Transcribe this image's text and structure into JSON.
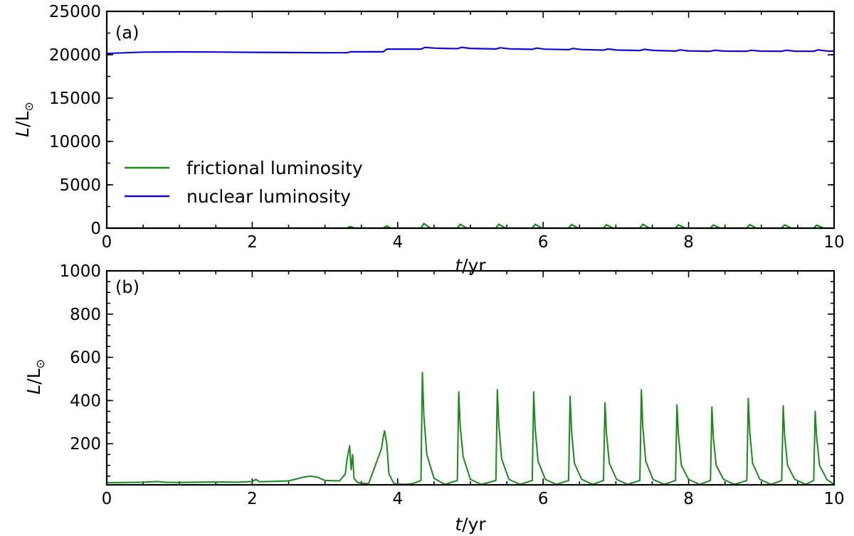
{
  "chart_data": [
    {
      "panel": "(a)",
      "type": "line",
      "xlabel_italic": "t",
      "xlabel_unit": "/yr",
      "ylabel_italic": "L",
      "ylabel_unit": "/L",
      "ylabel_sub": "⊙",
      "xlim": [
        0,
        10
      ],
      "ylim": [
        0,
        25000
      ],
      "xticks": [
        0,
        2,
        4,
        6,
        8,
        10
      ],
      "yticks": [
        0,
        5000,
        10000,
        15000,
        20000,
        25000
      ],
      "grid": false,
      "legend_position": "lower-left",
      "series": [
        {
          "name": "frictional luminosity",
          "color": "#1a8a1a",
          "x": [
            0,
            3.3,
            3.35,
            3.4,
            3.8,
            3.85,
            3.9,
            4.32,
            4.36,
            4.45,
            4.82,
            4.86,
            4.95,
            5.35,
            5.39,
            5.48,
            5.85,
            5.89,
            5.98,
            6.35,
            6.39,
            6.48,
            6.83,
            6.87,
            6.96,
            7.33,
            7.37,
            7.46,
            7.82,
            7.86,
            7.95,
            8.3,
            8.34,
            8.43,
            8.8,
            8.84,
            8.93,
            9.28,
            9.32,
            9.41,
            9.72,
            9.76,
            9.85,
            10
          ],
          "y": [
            20,
            20,
            190,
            20,
            20,
            260,
            20,
            20,
            530,
            20,
            20,
            440,
            20,
            20,
            450,
            20,
            20,
            440,
            20,
            20,
            420,
            20,
            20,
            390,
            20,
            20,
            450,
            20,
            20,
            380,
            20,
            20,
            370,
            20,
            20,
            410,
            20,
            20,
            375,
            20,
            20,
            350,
            20,
            20
          ]
        },
        {
          "name": "nuclear luminosity",
          "color": "#0b0bdc",
          "x": [
            0,
            0.5,
            1.0,
            1.5,
            2.0,
            2.5,
            3.0,
            3.3,
            3.35,
            3.8,
            3.85,
            4.32,
            4.38,
            4.5,
            4.82,
            4.88,
            5.0,
            5.35,
            5.41,
            5.53,
            5.85,
            5.91,
            6.03,
            6.35,
            6.41,
            6.53,
            6.83,
            6.89,
            7.01,
            7.33,
            7.39,
            7.51,
            7.82,
            7.88,
            8.0,
            8.3,
            8.36,
            8.48,
            8.8,
            8.86,
            8.98,
            9.28,
            9.34,
            9.46,
            9.72,
            9.78,
            9.9,
            10
          ],
          "y": [
            20150,
            20300,
            20330,
            20310,
            20280,
            20250,
            20230,
            20230,
            20340,
            20340,
            20650,
            20650,
            20850,
            20760,
            20700,
            20850,
            20730,
            20660,
            20800,
            20680,
            20620,
            20760,
            20640,
            20580,
            20720,
            20600,
            20530,
            20660,
            20540,
            20480,
            20620,
            20500,
            20420,
            20560,
            20440,
            20400,
            20520,
            20420,
            20400,
            20520,
            20420,
            20400,
            20520,
            20410,
            20400,
            20560,
            20430,
            20420
          ]
        }
      ]
    },
    {
      "panel": "(b)",
      "type": "line",
      "xlabel_italic": "t",
      "xlabel_unit": "/yr",
      "ylabel_italic": "L",
      "ylabel_unit": "/L",
      "ylabel_sub": "⊙",
      "xlim": [
        0,
        10
      ],
      "ylim": [
        10,
        1000
      ],
      "xticks": [
        0,
        2,
        4,
        6,
        8,
        10
      ],
      "yticks": [
        200,
        400,
        600,
        800,
        1000
      ],
      "grid": false,
      "series": [
        {
          "color": "#1a8a1a",
          "x": [
            0,
            0.5,
            0.7,
            0.8,
            1.0,
            1.5,
            1.8,
            2.0,
            2.05,
            2.1,
            2.3,
            2.5,
            2.7,
            2.8,
            2.9,
            3.0,
            3.2,
            3.28,
            3.3,
            3.31,
            3.34,
            3.36,
            3.38,
            3.4,
            3.45,
            3.6,
            3.78,
            3.8,
            3.82,
            3.85,
            3.88,
            3.95,
            4.1,
            4.2,
            4.32,
            4.34,
            4.36,
            4.4,
            4.5,
            4.65,
            4.82,
            4.84,
            4.86,
            4.9,
            5.0,
            5.15,
            5.35,
            5.37,
            5.39,
            5.43,
            5.53,
            5.68,
            5.85,
            5.87,
            5.89,
            5.93,
            6.03,
            6.18,
            6.35,
            6.37,
            6.39,
            6.43,
            6.53,
            6.68,
            6.83,
            6.85,
            6.87,
            6.91,
            7.01,
            7.16,
            7.33,
            7.35,
            7.37,
            7.41,
            7.51,
            7.66,
            7.82,
            7.84,
            7.86,
            7.9,
            8.0,
            8.15,
            8.3,
            8.32,
            8.34,
            8.38,
            8.48,
            8.63,
            8.8,
            8.82,
            8.84,
            8.88,
            8.98,
            9.13,
            9.28,
            9.3,
            9.32,
            9.36,
            9.46,
            9.61,
            9.72,
            9.74,
            9.76,
            9.8,
            9.9,
            10
          ],
          "y": [
            20,
            22,
            25,
            22,
            21,
            23,
            22,
            25,
            35,
            24,
            26,
            28,
            45,
            50,
            45,
            30,
            28,
            60,
            120,
            140,
            190,
            80,
            150,
            40,
            20,
            15,
            180,
            230,
            260,
            200,
            60,
            15,
            12,
            15,
            30,
            530,
            330,
            150,
            40,
            12,
            30,
            440,
            280,
            140,
            35,
            12,
            30,
            450,
            290,
            130,
            35,
            12,
            30,
            440,
            270,
            120,
            35,
            12,
            30,
            420,
            260,
            110,
            35,
            12,
            30,
            390,
            250,
            110,
            35,
            12,
            30,
            450,
            280,
            120,
            35,
            12,
            30,
            380,
            240,
            100,
            35,
            12,
            30,
            370,
            230,
            100,
            35,
            12,
            30,
            410,
            260,
            110,
            35,
            12,
            30,
            375,
            240,
            100,
            35,
            12,
            30,
            350,
            230,
            100,
            35,
            12
          ]
        }
      ]
    }
  ]
}
